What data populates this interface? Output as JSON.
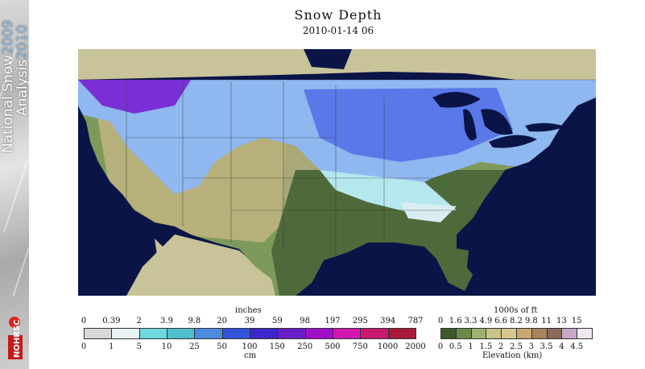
{
  "sidebar": {
    "line1": "National Snow",
    "line1_year": "2009",
    "line2": "Analysis",
    "line2_year": "2010",
    "logo_text": "NOHRSC"
  },
  "header": {
    "title": "Snow Depth",
    "subtitle": "2010-01-14 06"
  },
  "map": {
    "water_color": "#0a1446",
    "land_color": "#c9c39a",
    "snow_colors": [
      "#b5e8ee",
      "#8fb7f0",
      "#5b78e8",
      "#7a2fd6"
    ],
    "bare_colors": [
      "#4f6a3a",
      "#7d9a5a",
      "#b8b07a"
    ]
  },
  "snow_legend": {
    "top_unit": "inches",
    "top_ticks": [
      "0",
      "0.39",
      "2",
      "3.9",
      "9.8",
      "20",
      "39",
      "59",
      "98",
      "197",
      "295",
      "394",
      "787"
    ],
    "bottom_ticks": [
      "0",
      "1",
      "5",
      "10",
      "25",
      "50",
      "100",
      "150",
      "250",
      "500",
      "750",
      "1000",
      "2000"
    ],
    "bottom_unit": "cm",
    "colors": [
      "#d8d8d8",
      "#e8f4f6",
      "#6fd8e0",
      "#4ec0cc",
      "#4d8ae0",
      "#3554dc",
      "#3c28c8",
      "#6a1ec8",
      "#a010c8",
      "#d018b0",
      "#c81870",
      "#a81838"
    ]
  },
  "elev_legend": {
    "top_unit": "1000s of ft",
    "top_ticks": [
      "0",
      "1.6",
      "3.3",
      "4.9",
      "6.6",
      "8.2",
      "9.8",
      "11",
      "13",
      "15"
    ],
    "bottom_ticks": [
      "0",
      "0.5",
      "1",
      "1.5",
      "2",
      "2.5",
      "3",
      "3.5",
      "4",
      "4.5"
    ],
    "bottom_unit": "Elevation (km)",
    "colors": [
      "#3e5a2a",
      "#6a8a48",
      "#a0b070",
      "#c8c488",
      "#d8c890",
      "#c8a870",
      "#a8845a",
      "#8a6a5a",
      "#c8a8c8",
      "#f0e8f0"
    ]
  }
}
